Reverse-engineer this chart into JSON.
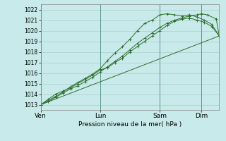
{
  "title": "",
  "xlabel": "Pression niveau de la mer( hPa )",
  "ylabel": "",
  "bg_color": "#c8eaea",
  "grid_color": "#aacccc",
  "line_color": "#2d6e2d",
  "ylim": [
    1012.5,
    1022.5
  ],
  "yticks": [
    1013,
    1014,
    1015,
    1016,
    1017,
    1018,
    1019,
    1020,
    1021,
    1022
  ],
  "xtick_labels": [
    "Ven",
    "Lun",
    "Sam",
    "Dim"
  ],
  "xtick_positions": [
    0,
    40,
    80,
    108
  ],
  "xlim": [
    0,
    120
  ],
  "lines": [
    {
      "x": [
        0,
        5,
        10,
        15,
        20,
        25,
        30,
        35,
        40,
        45,
        50,
        55,
        60,
        65,
        70,
        75,
        80,
        85,
        90,
        95,
        100,
        105,
        108,
        112,
        118,
        120
      ],
      "y": [
        1013.0,
        1013.3,
        1013.7,
        1014.1,
        1014.5,
        1014.8,
        1015.2,
        1015.6,
        1016.1,
        1016.6,
        1017.1,
        1017.6,
        1018.2,
        1018.8,
        1019.3,
        1019.8,
        1020.3,
        1020.7,
        1021.0,
        1021.2,
        1021.4,
        1021.5,
        1021.6,
        1021.5,
        1021.1,
        1019.5
      ],
      "marker": "+"
    },
    {
      "x": [
        0,
        5,
        10,
        15,
        20,
        25,
        30,
        35,
        40,
        45,
        50,
        55,
        60,
        65,
        70,
        75,
        80,
        85,
        90,
        95,
        100,
        105,
        110,
        115,
        120
      ],
      "y": [
        1013.0,
        1013.4,
        1013.8,
        1014.2,
        1014.7,
        1015.1,
        1015.5,
        1015.9,
        1016.4,
        1017.2,
        1017.9,
        1018.5,
        1019.2,
        1020.0,
        1020.7,
        1021.0,
        1021.5,
        1021.6,
        1021.5,
        1021.4,
        1021.5,
        1021.3,
        1021.0,
        1020.6,
        1019.5
      ],
      "marker": "+"
    },
    {
      "x": [
        0,
        5,
        10,
        15,
        20,
        25,
        30,
        35,
        40,
        45,
        50,
        55,
        60,
        65,
        70,
        75,
        80,
        85,
        90,
        95,
        100,
        105,
        110,
        115,
        120
      ],
      "y": [
        1013.0,
        1013.5,
        1014.0,
        1014.3,
        1014.6,
        1015.0,
        1015.4,
        1015.8,
        1016.3,
        1016.5,
        1017.0,
        1017.4,
        1018.0,
        1018.5,
        1019.0,
        1019.5,
        1020.0,
        1020.5,
        1020.9,
        1021.1,
        1021.2,
        1021.0,
        1020.8,
        1020.4,
        1019.5
      ],
      "marker": "+"
    },
    {
      "x": [
        0,
        120
      ],
      "y": [
        1013.0,
        1019.5
      ],
      "marker": null
    }
  ]
}
